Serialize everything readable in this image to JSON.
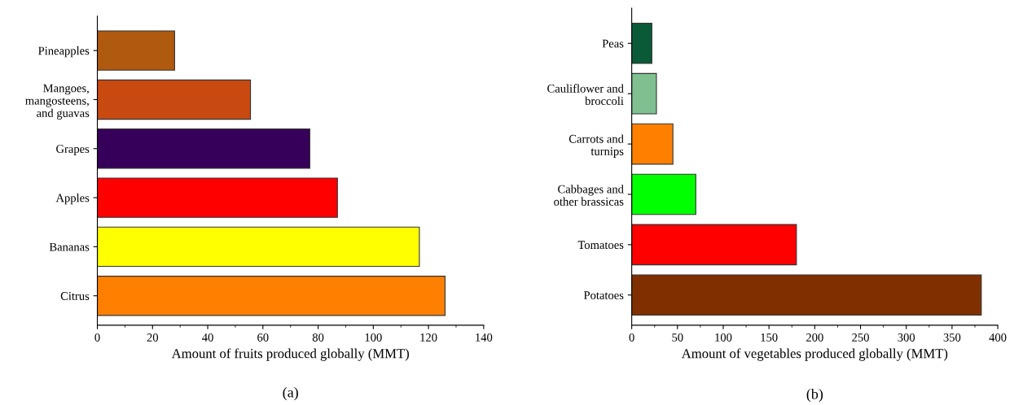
{
  "chart_data": [
    {
      "type": "bar",
      "orientation": "horizontal",
      "xlabel": "Amount of fruits produced globally (MMT)",
      "categories": [
        "Pineapples",
        "Mangoes,\nmangosteens,\nand guavas",
        "Grapes",
        "Apples",
        "Bananas",
        "Citrus"
      ],
      "values": [
        28,
        55.5,
        77,
        87,
        116.7,
        126
      ],
      "colors": [
        "#b05a10",
        "#c84a10",
        "#36005a",
        "#ff0000",
        "#ffff00",
        "#ff8000"
      ],
      "xlim": [
        0,
        140
      ],
      "xticks": [
        0,
        20,
        40,
        60,
        80,
        100,
        120,
        140
      ],
      "grid": false,
      "annotations": [
        "(a)"
      ]
    },
    {
      "type": "bar",
      "orientation": "horizontal",
      "xlabel": "Amount of vegetables produced globally (MMT)",
      "categories": [
        "Peas",
        "Cauliflower and\nbroccoli",
        "Carrots and\nturnips",
        "Cabbages and\nother brassicas",
        "Tomatoes",
        "Potatoes"
      ],
      "values": [
        22,
        27,
        45,
        70,
        180,
        382
      ],
      "colors": [
        "#0a5a38",
        "#80c090",
        "#ff8000",
        "#00ff00",
        "#ff0000",
        "#803000"
      ],
      "xlim": [
        0,
        400
      ],
      "xticks": [
        0,
        50,
        100,
        150,
        200,
        250,
        300,
        350,
        400
      ],
      "grid": false,
      "annotations": [
        "(b)"
      ]
    }
  ]
}
